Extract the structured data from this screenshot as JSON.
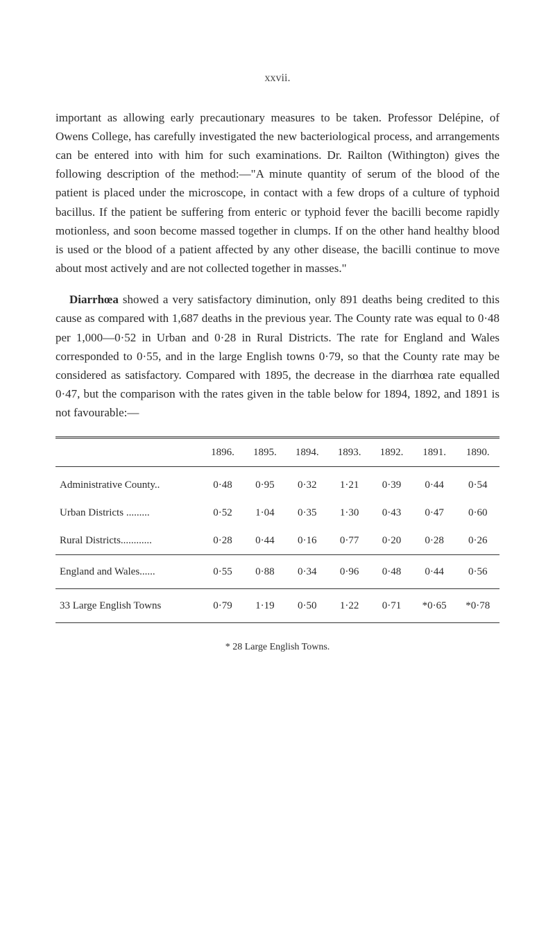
{
  "pageNumber": "xxvii.",
  "para1": "important as allowing early precautionary measures to be taken. Professor Delépine, of Owens College, has carefully investigated the new bacteriological process, and arrangements can be entered into with him for such examinations. Dr. Railton (Withington) gives the following description of the method:—\"A minute quantity of serum of the blood of the patient is placed under the microscope, in contact with a few drops of a culture of typhoid bacillus. If the patient be suffering from enteric or typhoid fever the bacilli become rapidly motionless, and soon become massed together in clumps. If on the other hand healthy blood is used or the blood of a patient affected by any other disease, the bacilli continue to move about most actively and are not collected together in masses.\"",
  "diarrhoea_title": "Diarrhœa",
  "para2": " showed a very satisfactory diminution, only 891 deaths being credited to this cause as compared with 1,687 deaths in the previous year. The County rate was equal to 0·48 per 1,000—0·52 in Urban and 0·28 in Rural Districts. The rate for England and Wales corresponded to 0·55, and in the large English towns 0·79, so that the County rate may be considered as satisfactory. Compared with 1895, the decrease in the diarrhœa rate equalled 0·47, but the comparison with the rates given in the table below for 1894, 1892, and 1891 is not favourable:—",
  "table": {
    "years": [
      "1896.",
      "1895.",
      "1894.",
      "1893.",
      "1892.",
      "1891.",
      "1890."
    ],
    "rows": [
      {
        "label": "Administrative County..",
        "values": [
          "0·48",
          "0·95",
          "0·32",
          "1·21",
          "0·39",
          "0·44",
          "0·54"
        ]
      },
      {
        "label": "Urban Districts .........",
        "values": [
          "0·52",
          "1·04",
          "0·35",
          "1·30",
          "0·43",
          "0·47",
          "0·60"
        ]
      },
      {
        "label": "Rural Districts............",
        "values": [
          "0·28",
          "0·44",
          "0·16",
          "0·77",
          "0·20",
          "0·28",
          "0·26"
        ]
      }
    ],
    "england_row": {
      "label": "England and Wales......",
      "values": [
        "0·55",
        "0·88",
        "0·34",
        "0·96",
        "0·48",
        "0·44",
        "0·56"
      ]
    },
    "towns_row": {
      "label": "33 Large English Towns",
      "values": [
        "0·79",
        "1·19",
        "0·50",
        "1·22",
        "0·71",
        "*0·65",
        "*0·78"
      ]
    }
  },
  "footnote": "* 28 Large English Towns."
}
